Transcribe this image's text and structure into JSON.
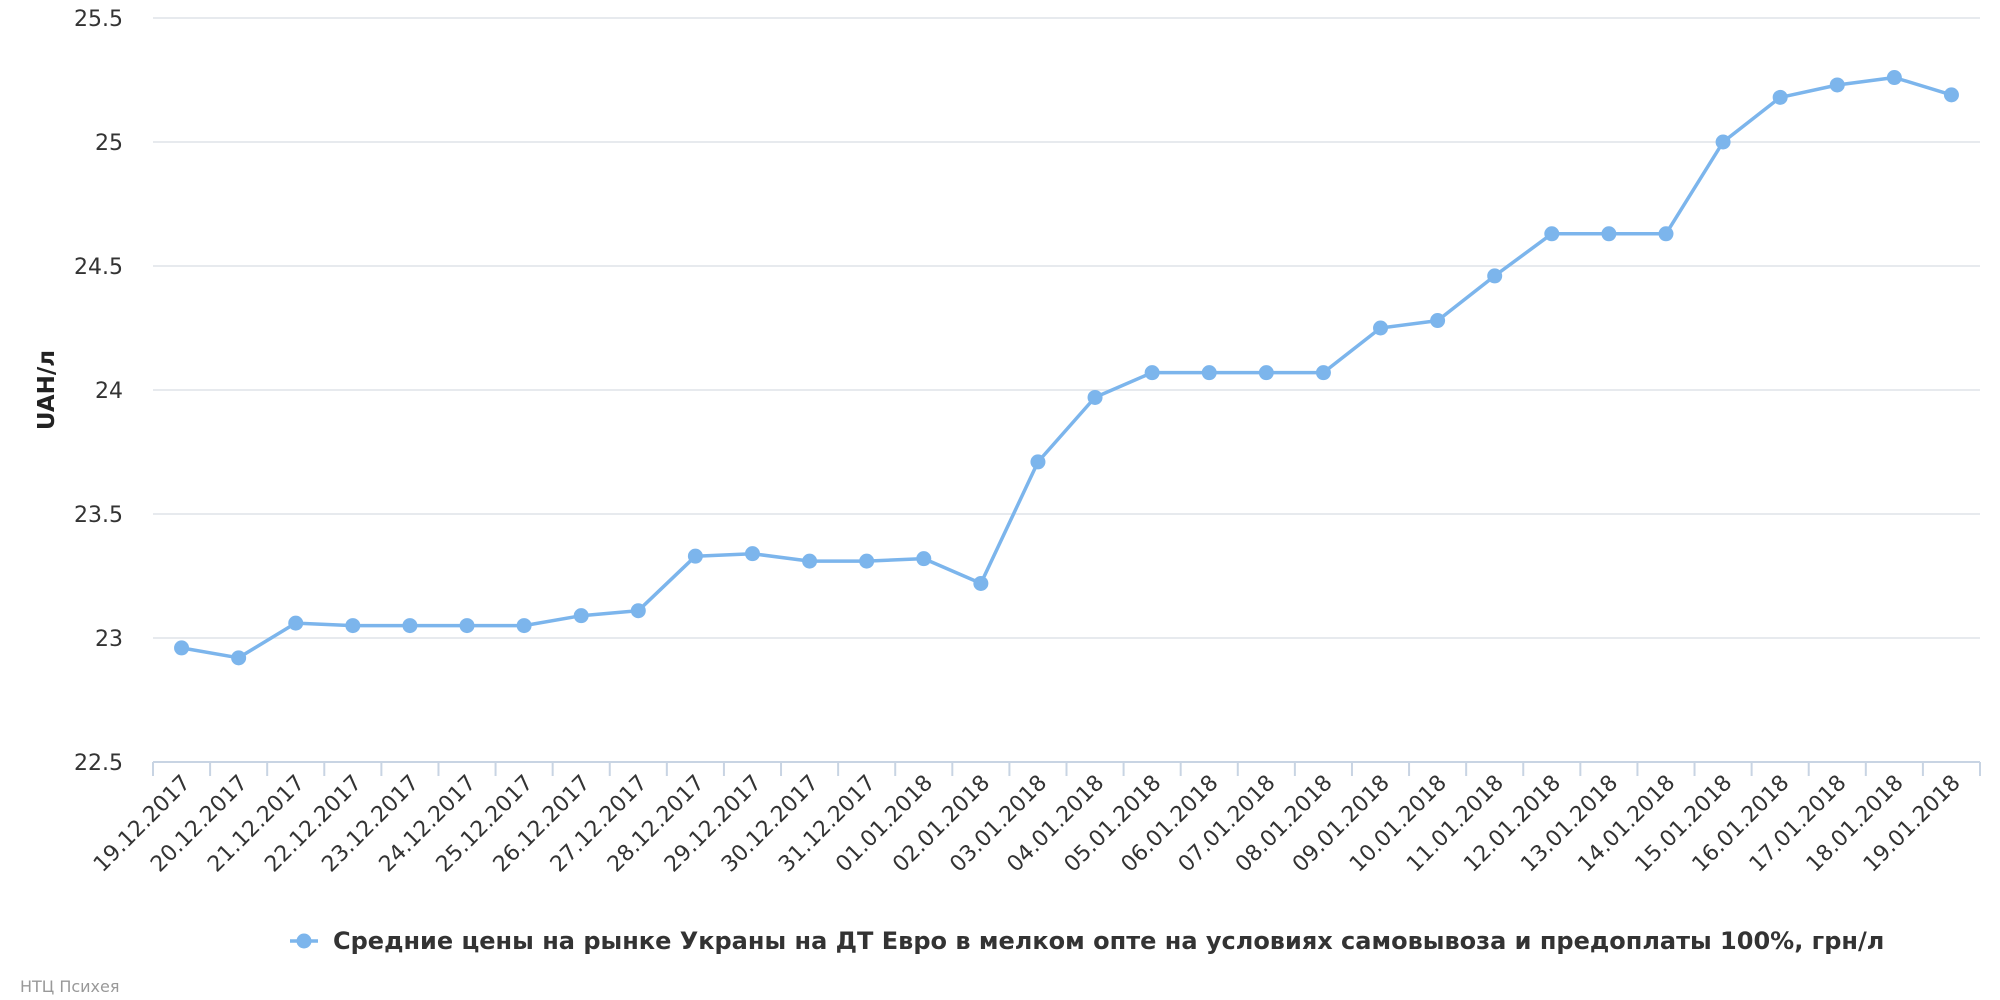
{
  "chart_data": {
    "type": "line",
    "title": "",
    "xlabel": "",
    "ylabel": "UAH/л",
    "ylim": [
      22.5,
      25.5
    ],
    "yticks": [
      22.5,
      23,
      23.5,
      24,
      24.5,
      25,
      25.5
    ],
    "ytick_labels": [
      "22.5",
      "23",
      "23.5",
      "24",
      "24.5",
      "25",
      "25.5"
    ],
    "grid": true,
    "legend_position": "bottom-center",
    "categories": [
      "19.12.2017",
      "20.12.2017",
      "21.12.2017",
      "22.12.2017",
      "23.12.2017",
      "24.12.2017",
      "25.12.2017",
      "26.12.2017",
      "27.12.2017",
      "28.12.2017",
      "29.12.2017",
      "30.12.2017",
      "31.12.2017",
      "01.01.2018",
      "02.01.2018",
      "03.01.2018",
      "04.01.2018",
      "05.01.2018",
      "06.01.2018",
      "07.01.2018",
      "08.01.2018",
      "09.01.2018",
      "10.01.2018",
      "11.01.2018",
      "12.01.2018",
      "13.01.2018",
      "14.01.2018",
      "15.01.2018",
      "16.01.2018",
      "17.01.2018",
      "18.01.2018",
      "19.01.2018"
    ],
    "series": [
      {
        "name": "Средние цены на рынке Украны на ДТ Евро в мелком опте на условиях самовывоза и предоплаты 100%, грн/л",
        "color": "#7cb5ec",
        "values": [
          22.96,
          22.92,
          23.06,
          23.05,
          23.05,
          23.05,
          23.05,
          23.09,
          23.11,
          23.33,
          23.34,
          23.31,
          23.31,
          23.32,
          23.22,
          23.71,
          23.97,
          24.07,
          24.07,
          24.07,
          24.07,
          24.25,
          24.28,
          24.46,
          24.63,
          24.63,
          24.63,
          25.0,
          25.18,
          25.23,
          25.26,
          25.19
        ]
      }
    ]
  },
  "credit": "НТЦ Психея"
}
